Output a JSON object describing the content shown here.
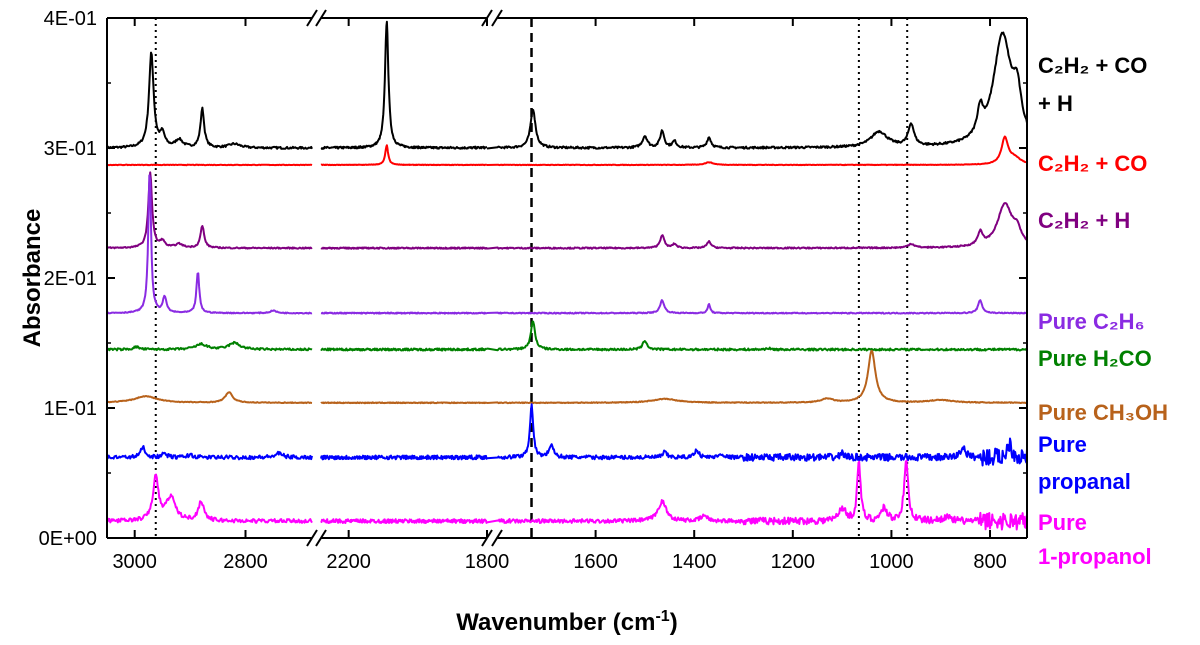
{
  "chart_data": {
    "type": "line",
    "title": "",
    "xlabel": "Wavenumber (cm-1)",
    "xlabel_main": "Wavenumber (cm",
    "xlabel_sup": "-1",
    "xlabel_close": ")",
    "ylabel": "Absorbance",
    "ylim": [
      0,
      0.4
    ],
    "x_axis_reversed": true,
    "x_segments": [
      {
        "range": [
          3050,
          2680
        ],
        "ticks": [
          3000,
          2800
        ]
      },
      {
        "range": [
          2280,
          1800
        ],
        "ticks": [
          2200
        ]
      },
      {
        "range": [
          1800,
          725
        ],
        "ticks": [
          1800,
          1600,
          1400,
          1200,
          1000,
          800
        ]
      }
    ],
    "x_tick_labels": [
      "3000",
      "2800",
      "2200",
      "1800",
      "1600",
      "1400",
      "1200",
      "1000",
      "800"
    ],
    "y_ticks": [
      0,
      0.1,
      0.2,
      0.3,
      0.4
    ],
    "y_tick_labels": [
      "0E+00",
      "1E-01",
      "2E-01",
      "3E-01",
      "4E-01"
    ],
    "reference_lines": [
      {
        "x": 2962,
        "style": "dotted"
      },
      {
        "x": 1730,
        "style": "dashed"
      },
      {
        "x": 1066,
        "style": "dotted"
      },
      {
        "x": 968,
        "style": "dotted"
      }
    ],
    "series": [
      {
        "name": "C2H2 + CO + H",
        "label_lines": [
          "C₂H₂ + CO",
          "+ H"
        ],
        "color": "#000000",
        "baseline": 0.3,
        "peaks": [
          [
            2970,
            0.073,
            5
          ],
          [
            2950,
            0.01,
            5
          ],
          [
            2920,
            0.006,
            8
          ],
          [
            2878,
            0.03,
            4
          ],
          [
            2820,
            0.003,
            12
          ],
          [
            2090,
            0.097,
            6
          ],
          [
            1727,
            0.03,
            6
          ],
          [
            1500,
            0.009,
            6
          ],
          [
            1465,
            0.013,
            5
          ],
          [
            1440,
            0.005,
            5
          ],
          [
            1370,
            0.008,
            5
          ],
          [
            1025,
            0.012,
            20
          ],
          [
            960,
            0.017,
            7
          ],
          [
            820,
            0.02,
            7
          ],
          [
            775,
            0.085,
            22
          ],
          [
            745,
            0.03,
            10
          ]
        ],
        "noise": 0.0008
      },
      {
        "name": "C2H2 + CO",
        "label_lines": [
          "C₂H₂ + CO"
        ],
        "color": "#ff0000",
        "baseline": 0.287,
        "peaks": [
          [
            2090,
            0.015,
            5
          ],
          [
            1370,
            0.002,
            10
          ],
          [
            770,
            0.02,
            8
          ],
          [
            750,
            0.005,
            15
          ]
        ],
        "noise": 0.0002
      },
      {
        "name": "C2H2 + H",
        "label_lines": [
          "C₂H₂ + H"
        ],
        "color": "#800080",
        "baseline": 0.223,
        "peaks": [
          [
            2972,
            0.058,
            4
          ],
          [
            2950,
            0.005,
            5
          ],
          [
            2920,
            0.003,
            8
          ],
          [
            2878,
            0.017,
            4
          ],
          [
            1465,
            0.01,
            5
          ],
          [
            1440,
            0.003,
            5
          ],
          [
            1370,
            0.005,
            5
          ],
          [
            960,
            0.003,
            8
          ],
          [
            820,
            0.01,
            6
          ],
          [
            770,
            0.033,
            18
          ],
          [
            745,
            0.01,
            10
          ]
        ],
        "noise": 0.0005
      },
      {
        "name": "Pure C2H6",
        "label_lines": [
          "Pure C₂H₆"
        ],
        "color": "#8a2be2",
        "baseline": 0.173,
        "peaks": [
          [
            2973,
            0.11,
            3
          ],
          [
            2946,
            0.012,
            4
          ],
          [
            2886,
            0.032,
            3
          ],
          [
            2750,
            0.002,
            6
          ],
          [
            1465,
            0.01,
            5
          ],
          [
            1370,
            0.007,
            3
          ],
          [
            820,
            0.01,
            5
          ]
        ],
        "noise": 0.0004
      },
      {
        "name": "Pure H2CO",
        "label_lines": [
          "Pure H₂CO"
        ],
        "color": "#008000",
        "baseline": 0.145,
        "peaks": [
          [
            2997,
            0.002,
            6
          ],
          [
            2880,
            0.004,
            12
          ],
          [
            2820,
            0.005,
            12
          ],
          [
            1727,
            0.022,
            5
          ],
          [
            1500,
            0.007,
            5
          ],
          [
            1250,
            0.001,
            5
          ]
        ],
        "noise": 0.0008
      },
      {
        "name": "Pure CH3OH",
        "label_lines": [
          "Pure CH₃OH"
        ],
        "color": "#b8621b",
        "baseline": 0.104,
        "peaks": [
          [
            2980,
            0.005,
            25
          ],
          [
            2830,
            0.008,
            8
          ],
          [
            1460,
            0.003,
            30
          ],
          [
            1130,
            0.003,
            15
          ],
          [
            1040,
            0.04,
            9
          ],
          [
            900,
            0.002,
            30
          ]
        ],
        "noise": 0.0003
      },
      {
        "name": "Pure propanal",
        "label_lines": [
          "Pure",
          "propanal"
        ],
        "color": "#0000ff",
        "baseline": 0.062,
        "peaks": [
          [
            2985,
            0.008,
            5
          ],
          [
            2946,
            0.003,
            5
          ],
          [
            2900,
            0.002,
            6
          ],
          [
            2740,
            0.003,
            8
          ],
          [
            1730,
            0.04,
            4
          ],
          [
            1690,
            0.01,
            5
          ],
          [
            1460,
            0.004,
            5
          ],
          [
            1395,
            0.006,
            5
          ],
          [
            1345,
            0.003,
            5
          ],
          [
            1100,
            0.004,
            4
          ],
          [
            855,
            0.008,
            6
          ],
          [
            760,
            0.012,
            5
          ]
        ],
        "noise": 0.0015
      },
      {
        "name": "Pure 1-propanol",
        "label_lines": [
          "Pure",
          "1-propanol"
        ],
        "color": "#ff00ff",
        "baseline": 0.013,
        "peaks": [
          [
            2962,
            0.033,
            6
          ],
          [
            2935,
            0.018,
            10
          ],
          [
            2880,
            0.015,
            6
          ],
          [
            1465,
            0.015,
            10
          ],
          [
            1380,
            0.004,
            8
          ],
          [
            1100,
            0.01,
            8
          ],
          [
            1066,
            0.047,
            4
          ],
          [
            1015,
            0.01,
            7
          ],
          [
            970,
            0.045,
            5
          ],
          [
            890,
            0.003,
            10
          ]
        ],
        "noise": 0.0015
      }
    ]
  }
}
